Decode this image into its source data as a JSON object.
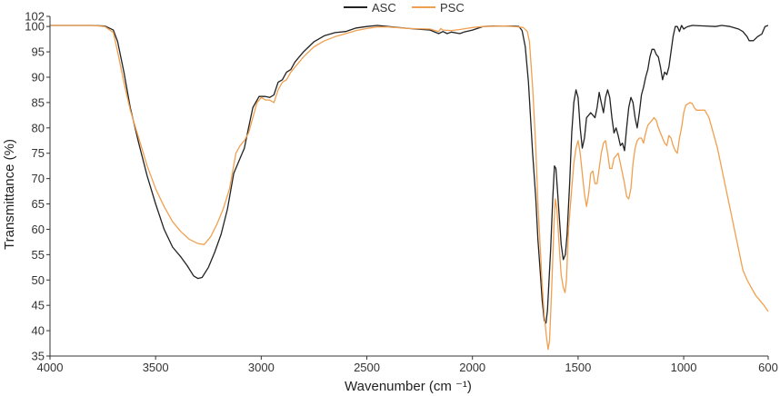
{
  "chart_data": {
    "type": "line",
    "title": "",
    "xlabel": "Wavenumber (cm ⁻¹)",
    "ylabel": "Transmittance (%)",
    "xlim": [
      4000,
      600
    ],
    "x_reversed": true,
    "ylim": [
      35,
      102
    ],
    "x_ticks": [
      "4000",
      "3500",
      "3000",
      "2500",
      "2000",
      "1500",
      "1000",
      "600"
    ],
    "y_ticks": [
      "102",
      "100",
      "95",
      "90",
      "85",
      "80",
      "75",
      "70",
      "65",
      "60",
      "55",
      "50",
      "45",
      "40",
      "35"
    ],
    "grid": false,
    "legend_position": "top-center",
    "series": [
      {
        "name": "ASC",
        "color": "#222222",
        "points": [
          [
            4000,
            100.2
          ],
          [
            3900,
            100.2
          ],
          [
            3800,
            100.2
          ],
          [
            3740,
            100.1
          ],
          [
            3700,
            99.3
          ],
          [
            3680,
            97
          ],
          [
            3650,
            91
          ],
          [
            3620,
            84
          ],
          [
            3580,
            77
          ],
          [
            3540,
            70.5
          ],
          [
            3500,
            65
          ],
          [
            3460,
            60
          ],
          [
            3420,
            56.5
          ],
          [
            3380,
            54.5
          ],
          [
            3350,
            52.8
          ],
          [
            3320,
            50.8
          ],
          [
            3300,
            50.3
          ],
          [
            3280,
            50.5
          ],
          [
            3250,
            52.5
          ],
          [
            3220,
            55.5
          ],
          [
            3190,
            59
          ],
          [
            3160,
            64
          ],
          [
            3130,
            71
          ],
          [
            3100,
            74
          ],
          [
            3080,
            76
          ],
          [
            3060,
            80
          ],
          [
            3040,
            84
          ],
          [
            3010,
            86.2
          ],
          [
            2980,
            86.2
          ],
          [
            2960,
            86
          ],
          [
            2940,
            86.5
          ],
          [
            2920,
            89
          ],
          [
            2900,
            89.5
          ],
          [
            2880,
            91
          ],
          [
            2860,
            91.5
          ],
          [
            2840,
            93
          ],
          [
            2800,
            95
          ],
          [
            2750,
            97
          ],
          [
            2700,
            98.2
          ],
          [
            2650,
            98.8
          ],
          [
            2600,
            99
          ],
          [
            2550,
            99.7
          ],
          [
            2500,
            100
          ],
          [
            2450,
            100.2
          ],
          [
            2400,
            100
          ],
          [
            2300,
            99.6
          ],
          [
            2200,
            99.3
          ],
          [
            2160,
            98.6
          ],
          [
            2140,
            99
          ],
          [
            2120,
            98.6
          ],
          [
            2100,
            98.9
          ],
          [
            2060,
            98.6
          ],
          [
            2040,
            98.9
          ],
          [
            2000,
            99.3
          ],
          [
            1950,
            100
          ],
          [
            1900,
            100.1
          ],
          [
            1800,
            100.1
          ],
          [
            1780,
            100
          ],
          [
            1765,
            99.2
          ],
          [
            1750,
            96
          ],
          [
            1735,
            89
          ],
          [
            1715,
            75
          ],
          [
            1700,
            66
          ],
          [
            1690,
            58
          ],
          [
            1680,
            52
          ],
          [
            1670,
            46
          ],
          [
            1660,
            42
          ],
          [
            1652,
            41.5
          ],
          [
            1645,
            44
          ],
          [
            1630,
            56
          ],
          [
            1620,
            66
          ],
          [
            1612,
            72.5
          ],
          [
            1605,
            72
          ],
          [
            1598,
            68
          ],
          [
            1590,
            63
          ],
          [
            1580,
            57
          ],
          [
            1570,
            54
          ],
          [
            1560,
            55
          ],
          [
            1552,
            59
          ],
          [
            1540,
            69
          ],
          [
            1530,
            79
          ],
          [
            1520,
            85
          ],
          [
            1510,
            87.5
          ],
          [
            1500,
            86
          ],
          [
            1490,
            80
          ],
          [
            1480,
            76
          ],
          [
            1470,
            78
          ],
          [
            1460,
            82
          ],
          [
            1440,
            83
          ],
          [
            1420,
            82
          ],
          [
            1410,
            84
          ],
          [
            1400,
            87
          ],
          [
            1390,
            85
          ],
          [
            1380,
            83
          ],
          [
            1370,
            86
          ],
          [
            1360,
            87.5
          ],
          [
            1350,
            86
          ],
          [
            1340,
            82
          ],
          [
            1330,
            79
          ],
          [
            1320,
            80
          ],
          [
            1310,
            78.5
          ],
          [
            1300,
            76.5
          ],
          [
            1290,
            77
          ],
          [
            1280,
            75.5
          ],
          [
            1270,
            80
          ],
          [
            1260,
            84
          ],
          [
            1250,
            86
          ],
          [
            1240,
            85
          ],
          [
            1230,
            82
          ],
          [
            1220,
            80
          ],
          [
            1210,
            83
          ],
          [
            1200,
            86.5
          ],
          [
            1190,
            88
          ],
          [
            1180,
            90
          ],
          [
            1170,
            91.5
          ],
          [
            1160,
            94
          ],
          [
            1150,
            95.5
          ],
          [
            1140,
            95.5
          ],
          [
            1130,
            94.5
          ],
          [
            1120,
            94
          ],
          [
            1110,
            92
          ],
          [
            1100,
            89.5
          ],
          [
            1090,
            91
          ],
          [
            1080,
            90.5
          ],
          [
            1070,
            92
          ],
          [
            1060,
            95
          ],
          [
            1050,
            98
          ],
          [
            1040,
            100
          ],
          [
            1030,
            100
          ],
          [
            1020,
            99
          ],
          [
            1010,
            100.2
          ],
          [
            1000,
            99.5
          ],
          [
            990,
            99.8
          ],
          [
            980,
            100
          ],
          [
            960,
            100.2
          ],
          [
            900,
            100.1
          ],
          [
            850,
            100
          ],
          [
            820,
            100.2
          ],
          [
            780,
            100
          ],
          [
            740,
            99.5
          ],
          [
            720,
            99
          ],
          [
            700,
            98
          ],
          [
            690,
            97.2
          ],
          [
            670,
            97.2
          ],
          [
            650,
            98
          ],
          [
            630,
            98.5
          ],
          [
            615,
            100
          ],
          [
            600,
            100.2
          ]
        ]
      },
      {
        "name": "PSC",
        "color": "#F0A050",
        "points": [
          [
            4000,
            100.2
          ],
          [
            3900,
            100.2
          ],
          [
            3800,
            100.2
          ],
          [
            3740,
            100
          ],
          [
            3700,
            98.8
          ],
          [
            3680,
            95
          ],
          [
            3650,
            89
          ],
          [
            3620,
            83.5
          ],
          [
            3580,
            78
          ],
          [
            3540,
            72.5
          ],
          [
            3500,
            68
          ],
          [
            3460,
            64.5
          ],
          [
            3420,
            61.5
          ],
          [
            3380,
            59.5
          ],
          [
            3340,
            58
          ],
          [
            3300,
            57.2
          ],
          [
            3270,
            57
          ],
          [
            3240,
            58.5
          ],
          [
            3210,
            61
          ],
          [
            3180,
            64
          ],
          [
            3150,
            68
          ],
          [
            3120,
            75
          ],
          [
            3100,
            76.5
          ],
          [
            3080,
            77.5
          ],
          [
            3060,
            79
          ],
          [
            3040,
            82
          ],
          [
            3020,
            85
          ],
          [
            3000,
            86
          ],
          [
            2980,
            85.5
          ],
          [
            2960,
            85.5
          ],
          [
            2940,
            85
          ],
          [
            2920,
            87.5
          ],
          [
            2900,
            89
          ],
          [
            2880,
            89.5
          ],
          [
            2860,
            91
          ],
          [
            2840,
            92
          ],
          [
            2800,
            94
          ],
          [
            2750,
            96
          ],
          [
            2700,
            97.2
          ],
          [
            2650,
            98
          ],
          [
            2600,
            98.6
          ],
          [
            2550,
            99.2
          ],
          [
            2500,
            99.6
          ],
          [
            2450,
            99.9
          ],
          [
            2400,
            99.9
          ],
          [
            2300,
            99.6
          ],
          [
            2200,
            99.5
          ],
          [
            2160,
            99
          ],
          [
            2150,
            99.6
          ],
          [
            2140,
            99.3
          ],
          [
            2100,
            99.2
          ],
          [
            2060,
            99.4
          ],
          [
            2000,
            99.8
          ],
          [
            1950,
            100
          ],
          [
            1850,
            100.1
          ],
          [
            1800,
            100
          ],
          [
            1760,
            99.8
          ],
          [
            1740,
            99
          ],
          [
            1730,
            97
          ],
          [
            1715,
            88
          ],
          [
            1700,
            76
          ],
          [
            1690,
            65
          ],
          [
            1680,
            57
          ],
          [
            1670,
            49
          ],
          [
            1660,
            43
          ],
          [
            1650,
            39
          ],
          [
            1642,
            36.3
          ],
          [
            1635,
            38
          ],
          [
            1625,
            48
          ],
          [
            1615,
            60
          ],
          [
            1608,
            66
          ],
          [
            1600,
            64
          ],
          [
            1590,
            57
          ],
          [
            1580,
            51
          ],
          [
            1570,
            48.5
          ],
          [
            1562,
            47.5
          ],
          [
            1555,
            50
          ],
          [
            1545,
            60
          ],
          [
            1530,
            68
          ],
          [
            1520,
            73
          ],
          [
            1510,
            76
          ],
          [
            1500,
            77.5
          ],
          [
            1490,
            75
          ],
          [
            1480,
            71
          ],
          [
            1470,
            67
          ],
          [
            1460,
            64.5
          ],
          [
            1450,
            67
          ],
          [
            1440,
            71
          ],
          [
            1430,
            71.5
          ],
          [
            1420,
            69
          ],
          [
            1410,
            69
          ],
          [
            1400,
            72
          ],
          [
            1390,
            75
          ],
          [
            1380,
            77
          ],
          [
            1370,
            77.5
          ],
          [
            1360,
            75
          ],
          [
            1350,
            72
          ],
          [
            1340,
            72
          ],
          [
            1330,
            74
          ],
          [
            1320,
            74.5
          ],
          [
            1310,
            75
          ],
          [
            1300,
            73
          ],
          [
            1290,
            71
          ],
          [
            1280,
            69
          ],
          [
            1270,
            66.5
          ],
          [
            1260,
            66
          ],
          [
            1250,
            68
          ],
          [
            1240,
            73
          ],
          [
            1230,
            76
          ],
          [
            1220,
            77.5
          ],
          [
            1210,
            78
          ],
          [
            1200,
            78
          ],
          [
            1190,
            77
          ],
          [
            1180,
            79
          ],
          [
            1170,
            80.5
          ],
          [
            1160,
            81
          ],
          [
            1150,
            81.5
          ],
          [
            1140,
            82
          ],
          [
            1130,
            81.5
          ],
          [
            1120,
            80
          ],
          [
            1110,
            79
          ],
          [
            1100,
            78
          ],
          [
            1090,
            77
          ],
          [
            1080,
            76.5
          ],
          [
            1070,
            78.5
          ],
          [
            1060,
            78
          ],
          [
            1050,
            76.5
          ],
          [
            1040,
            75.5
          ],
          [
            1030,
            75
          ],
          [
            1020,
            78
          ],
          [
            1010,
            80
          ],
          [
            1000,
            83
          ],
          [
            990,
            84.5
          ],
          [
            970,
            85
          ],
          [
            960,
            84.8
          ],
          [
            950,
            84
          ],
          [
            940,
            83.5
          ],
          [
            920,
            83.5
          ],
          [
            900,
            83.5
          ],
          [
            880,
            82
          ],
          [
            860,
            79
          ],
          [
            840,
            76
          ],
          [
            820,
            72
          ],
          [
            800,
            68
          ],
          [
            780,
            64
          ],
          [
            760,
            60
          ],
          [
            740,
            56
          ],
          [
            720,
            52
          ],
          [
            700,
            50
          ],
          [
            680,
            48.5
          ],
          [
            660,
            47
          ],
          [
            640,
            46
          ],
          [
            620,
            45
          ],
          [
            600,
            43.8
          ]
        ]
      }
    ]
  }
}
